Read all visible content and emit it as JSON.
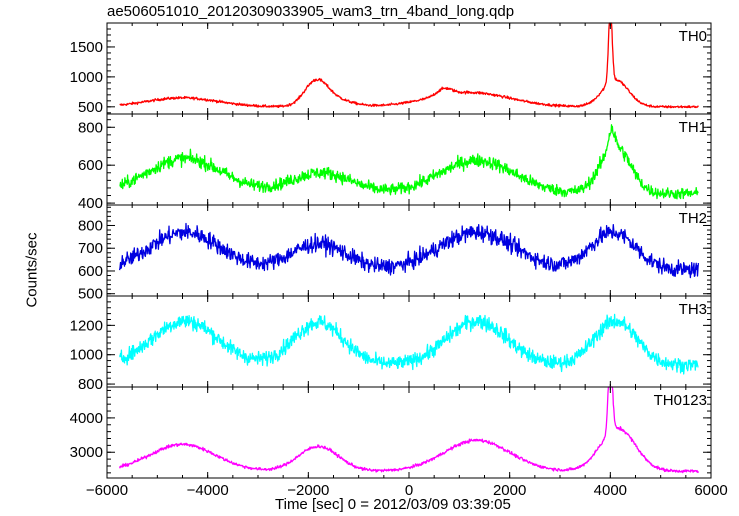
{
  "chart_data": {
    "type": "line",
    "title": "ae506051010_20120309033905_wam3_trn_4band_long.qdp",
    "xlabel": "Time [sec] 0 = 2012/03/09 03:39:05",
    "ylabel": "Counts/sec",
    "xlim": [
      -6000,
      6000
    ],
    "xticks": [
      -6000,
      -4000,
      -2000,
      0,
      2000,
      4000,
      6000
    ],
    "x_data_range": [
      -5750,
      5750
    ],
    "panels": [
      {
        "name": "TH0",
        "color": "#ff0000",
        "ylim": [
          380,
          1900
        ],
        "yticks": [
          500,
          1000,
          1500
        ],
        "baseline": 500,
        "noise": 18,
        "features": [
          {
            "x": -4500,
            "height": 150,
            "width": 700
          },
          {
            "x": -1850,
            "height": 380,
            "width": 230
          },
          {
            "x": -1500,
            "height": 120,
            "width": 350
          },
          {
            "x": 700,
            "height": 110,
            "width": 150
          },
          {
            "x": 1200,
            "height": 240,
            "width": 800
          },
          {
            "x": 4000,
            "height": 1270,
            "width": 35
          },
          {
            "x": 4100,
            "height": 450,
            "width": 260
          }
        ]
      },
      {
        "name": "TH1",
        "color": "#00ff00",
        "ylim": [
          390,
          870
        ],
        "yticks": [
          400,
          600,
          800
        ],
        "baseline": 450,
        "noise": 28,
        "features": [
          {
            "x": -4450,
            "height": 185,
            "width": 750
          },
          {
            "x": -1750,
            "height": 110,
            "width": 600
          },
          {
            "x": 1350,
            "height": 175,
            "width": 750
          },
          {
            "x": 4100,
            "height": 250,
            "width": 300
          },
          {
            "x": 4020,
            "height": 100,
            "width": 60
          }
        ]
      },
      {
        "name": "TH2",
        "color": "#0000e0",
        "ylim": [
          490,
          890
        ],
        "yticks": [
          500,
          600,
          700,
          800
        ],
        "baseline": 605,
        "noise": 32,
        "features": [
          {
            "x": -4450,
            "height": 165,
            "width": 700
          },
          {
            "x": -1800,
            "height": 115,
            "width": 550
          },
          {
            "x": 1350,
            "height": 165,
            "width": 750
          },
          {
            "x": 4050,
            "height": 165,
            "width": 450
          }
        ]
      },
      {
        "name": "TH3",
        "color": "#00ffff",
        "ylim": [
          780,
          1400
        ],
        "yticks": [
          800,
          1000,
          1200
        ],
        "baseline": 930,
        "noise": 45,
        "features": [
          {
            "x": -4450,
            "height": 300,
            "width": 650
          },
          {
            "x": -1800,
            "height": 290,
            "width": 500
          },
          {
            "x": 1350,
            "height": 300,
            "width": 600
          },
          {
            "x": 4100,
            "height": 300,
            "width": 420
          }
        ]
      },
      {
        "name": "TH0123",
        "color": "#ff00ff",
        "ylim": [
          2250,
          4900
        ],
        "yticks": [
          3000,
          4000
        ],
        "baseline": 2450,
        "noise": 40,
        "features": [
          {
            "x": -4500,
            "height": 780,
            "width": 650
          },
          {
            "x": -1800,
            "height": 720,
            "width": 400
          },
          {
            "x": 1350,
            "height": 900,
            "width": 650
          },
          {
            "x": 4000,
            "height": 2350,
            "width": 40
          },
          {
            "x": 4150,
            "height": 1250,
            "width": 350
          }
        ]
      }
    ]
  }
}
